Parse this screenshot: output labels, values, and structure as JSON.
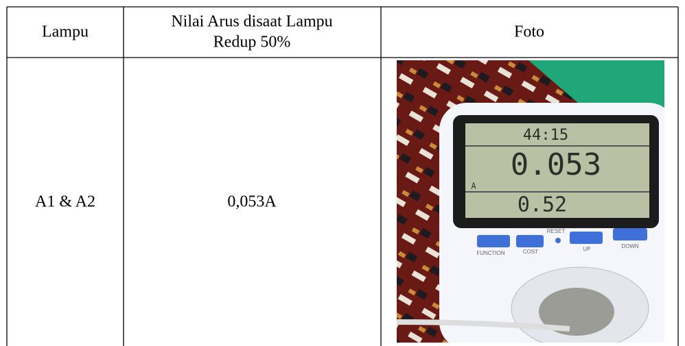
{
  "table": {
    "headers": [
      "Lampu",
      [
        "Nilai Arus disaat Lampu",
        "Redup 50%"
      ],
      "Foto"
    ],
    "rows": [
      [
        "A1 & A2",
        "0,053A"
      ]
    ]
  },
  "photo": {
    "display": [
      "44:15",
      "0.053",
      "A",
      "0.52"
    ],
    "reset": "RESET",
    "buttons": [
      "FUNCTION",
      "COST",
      "UP",
      "DOWN"
    ]
  }
}
